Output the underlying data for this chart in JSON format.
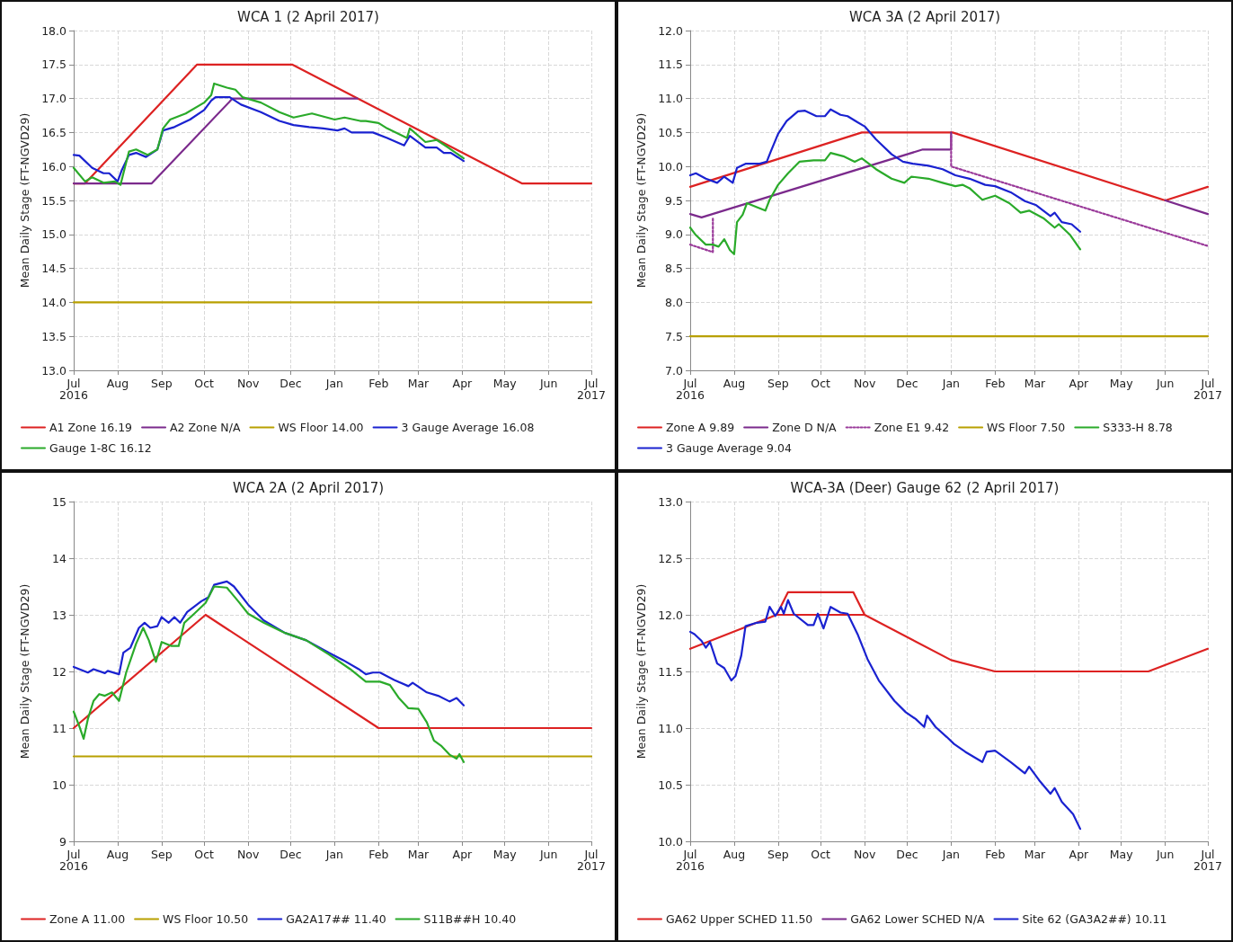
{
  "chart_data": [
    {
      "type": "line",
      "title": "WCA 1 (2 April 2017)",
      "ylabel": "Mean Daily Stage (FT-NGVD29)",
      "xlim": [
        "2016-07-01",
        "2017-07-01"
      ],
      "xticks": [
        {
          "value": "2016-07-01",
          "label": "Jul\n2016"
        },
        {
          "value": "2016-08-01",
          "label": "Aug"
        },
        {
          "value": "2016-09-01",
          "label": "Sep"
        },
        {
          "value": "2016-10-01",
          "label": "Oct"
        },
        {
          "value": "2016-11-01",
          "label": "Nov"
        },
        {
          "value": "2016-12-01",
          "label": "Dec"
        },
        {
          "value": "2017-01-01",
          "label": "Jan"
        },
        {
          "value": "2017-02-01",
          "label": "Feb"
        },
        {
          "value": "2017-03-01",
          "label": "Mar"
        },
        {
          "value": "2017-04-01",
          "label": "Apr"
        },
        {
          "value": "2017-05-01",
          "label": "May"
        },
        {
          "value": "2017-06-01",
          "label": "Jun"
        },
        {
          "value": "2017-07-01",
          "label": "Jul\n2017"
        }
      ],
      "ylim": [
        13,
        18
      ],
      "yticks": [
        {
          "value": 13,
          "label": "13.0"
        },
        13.5,
        {
          "value": 14,
          "label": "14.0"
        },
        14.5,
        {
          "value": 15,
          "label": "15.0"
        },
        15.5,
        {
          "value": 16,
          "label": "16.0"
        },
        16.5,
        {
          "value": 17,
          "label": "17.0"
        },
        17.5,
        {
          "value": 18,
          "label": "18.0"
        }
      ],
      "grid": true,
      "legend": "bottom",
      "marker": "none",
      "series": [
        {
          "name": "A1 Zone 16.19",
          "color": "#dd2222",
          "x": [
            "2016-07-01",
            "2016-07-09",
            "2016-09-26",
            "2016-12-02",
            "2017-05-13",
            "2017-07-01"
          ],
          "values": [
            15.75,
            15.75,
            17.5,
            17.5,
            15.75,
            15.75
          ]
        },
        {
          "name": "A2 Zone N/A",
          "color": "#7b2a8c",
          "x": [
            "2016-07-01",
            "2016-08-25",
            "2016-10-21",
            "2017-01-17"
          ],
          "values": [
            15.75,
            15.75,
            17.0,
            17.0
          ]
        },
        {
          "name": "WS Floor 14.00",
          "color": "#b8a000",
          "x": [
            "2016-07-01",
            "2017-07-01"
          ],
          "values": [
            14.0,
            14.0
          ]
        },
        {
          "name": "3 Gauge Average 16.08",
          "color": "#1a22d0",
          "x": [
            "2016-07-01",
            "2016-07-05",
            "2016-07-14",
            "2016-07-22",
            "2016-07-26",
            "2016-08-01",
            "2016-08-04",
            "2016-08-09",
            "2016-08-14",
            "2016-08-21",
            "2016-08-29",
            "2016-09-02",
            "2016-09-10",
            "2016-09-21",
            "2016-10-01",
            "2016-10-06",
            "2016-10-09",
            "2016-10-19",
            "2016-10-27",
            "2016-11-10",
            "2016-11-23",
            "2016-12-03",
            "2016-12-14",
            "2016-12-24",
            "2017-01-03",
            "2017-01-08",
            "2017-01-13",
            "2017-01-23",
            "2017-01-28",
            "2017-02-07",
            "2017-02-19",
            "2017-02-23",
            "2017-03-06",
            "2017-03-14",
            "2017-03-19",
            "2017-03-24",
            "2017-04-02"
          ],
          "values": [
            16.17,
            16.16,
            15.98,
            15.9,
            15.9,
            15.78,
            15.95,
            16.17,
            16.2,
            16.14,
            16.25,
            16.53,
            16.58,
            16.69,
            16.83,
            16.97,
            17.02,
            17.02,
            16.91,
            16.8,
            16.67,
            16.61,
            16.58,
            16.56,
            16.53,
            16.56,
            16.5,
            16.5,
            16.5,
            16.42,
            16.31,
            16.45,
            16.28,
            16.28,
            16.2,
            16.2,
            16.08
          ]
        },
        {
          "name": "Gauge 1-8C 16.12",
          "color": "#2aaa2a",
          "x": [
            "2016-07-01",
            "2016-07-09",
            "2016-07-14",
            "2016-07-22",
            "2016-07-30",
            "2016-08-03",
            "2016-08-07",
            "2016-08-09",
            "2016-08-14",
            "2016-08-22",
            "2016-08-29",
            "2016-09-02",
            "2016-09-07",
            "2016-09-18",
            "2016-10-01",
            "2016-10-06",
            "2016-10-08",
            "2016-10-17",
            "2016-10-23",
            "2016-10-28",
            "2016-11-10",
            "2016-11-23",
            "2016-12-03",
            "2016-12-16",
            "2017-01-01",
            "2017-01-08",
            "2017-01-19",
            "2017-01-23",
            "2017-02-01",
            "2017-02-07",
            "2017-02-21",
            "2017-02-23",
            "2017-03-06",
            "2017-03-14",
            "2017-03-22",
            "2017-04-02"
          ],
          "values": [
            15.98,
            15.78,
            15.84,
            15.76,
            15.78,
            15.73,
            16.06,
            16.22,
            16.25,
            16.17,
            16.25,
            16.56,
            16.69,
            16.78,
            16.94,
            17.05,
            17.22,
            17.16,
            17.13,
            17.02,
            16.94,
            16.8,
            16.72,
            16.78,
            16.69,
            16.72,
            16.67,
            16.67,
            16.64,
            16.56,
            16.42,
            16.56,
            16.36,
            16.39,
            16.28,
            16.12
          ]
        }
      ]
    },
    {
      "type": "line",
      "title": "WCA 3A (2 April 2017)",
      "ylabel": "Mean Daily Stage (FT-NGVD29)",
      "xlim": [
        "2016-07-01",
        "2017-07-01"
      ],
      "xticks": [
        {
          "value": "2016-07-01",
          "label": "Jul\n2016"
        },
        {
          "value": "2016-08-01",
          "label": "Aug"
        },
        {
          "value": "2016-09-01",
          "label": "Sep"
        },
        {
          "value": "2016-10-01",
          "label": "Oct"
        },
        {
          "value": "2016-11-01",
          "label": "Nov"
        },
        {
          "value": "2016-12-01",
          "label": "Dec"
        },
        {
          "value": "2017-01-01",
          "label": "Jan"
        },
        {
          "value": "2017-02-01",
          "label": "Feb"
        },
        {
          "value": "2017-03-01",
          "label": "Mar"
        },
        {
          "value": "2017-04-01",
          "label": "Apr"
        },
        {
          "value": "2017-05-01",
          "label": "May"
        },
        {
          "value": "2017-06-01",
          "label": "Jun"
        },
        {
          "value": "2017-07-01",
          "label": "Jul\n2017"
        }
      ],
      "ylim": [
        7,
        12
      ],
      "yticks": [
        {
          "value": 7,
          "label": "7.0"
        },
        7.5,
        {
          "value": 8,
          "label": "8.0"
        },
        8.5,
        {
          "value": 9,
          "label": "9.0"
        },
        9.5,
        {
          "value": 10,
          "label": "10.0"
        },
        10.5,
        {
          "value": 11,
          "label": "11.0"
        },
        11.5,
        {
          "value": 12,
          "label": "12.0"
        }
      ],
      "grid": true,
      "legend": "bottom",
      "marker": "none",
      "series": [
        {
          "name": "Zone A 9.89",
          "color": "#dd2222",
          "x": [
            "2016-07-01",
            "2016-10-30",
            "2017-01-02",
            "2017-06-01",
            "2017-07-01"
          ],
          "values": [
            9.7,
            10.5,
            10.5,
            9.5,
            9.7
          ]
        },
        {
          "name": "Zone D N/A",
          "color": "#7b2a8c",
          "x": [
            "2016-07-01",
            "2016-07-09",
            "2016-12-12",
            "2017-01-01",
            "2017-01-01",
            "2017-01-02",
            "2017-06-01",
            "2017-07-01"
          ],
          "values": [
            9.3,
            9.25,
            10.25,
            10.25,
            10.5,
            null,
            9.5,
            9.3
          ]
        },
        {
          "name": "Zone E1 9.42",
          "color": "#9a3a9a",
          "line_style": "dotted",
          "x": [
            "2016-07-01",
            "2016-07-17",
            "2016-07-17",
            "2016-07-18",
            "2017-01-01",
            "2017-01-01",
            "2017-07-01"
          ],
          "values": [
            8.85,
            8.74,
            9.25,
            null,
            10.45,
            10.0,
            8.83
          ]
        },
        {
          "name": "WS Floor 7.50",
          "color": "#b8a000",
          "x": [
            "2016-07-01",
            "2017-07-01"
          ],
          "values": [
            7.5,
            7.5
          ]
        },
        {
          "name": "S333-H 8.78",
          "color": "#2aaa2a",
          "x": [
            "2016-07-01",
            "2016-07-05",
            "2016-07-12",
            "2016-07-17",
            "2016-07-21",
            "2016-07-25",
            "2016-07-29",
            "2016-08-01",
            "2016-08-03",
            "2016-08-07",
            "2016-08-10",
            "2016-08-17",
            "2016-08-23",
            "2016-08-26",
            "2016-09-01",
            "2016-09-08",
            "2016-09-16",
            "2016-09-26",
            "2016-10-04",
            "2016-10-08",
            "2016-10-17",
            "2016-10-25",
            "2016-10-30",
            "2016-11-09",
            "2016-11-20",
            "2016-11-29",
            "2016-12-04",
            "2016-12-16",
            "2016-12-26",
            "2017-01-04",
            "2017-01-09",
            "2017-01-14",
            "2017-01-23",
            "2017-02-01",
            "2017-02-11",
            "2017-02-19",
            "2017-02-25",
            "2017-03-07",
            "2017-03-15",
            "2017-03-18",
            "2017-03-26",
            "2017-04-02"
          ],
          "values": [
            9.1,
            8.99,
            8.85,
            8.85,
            8.82,
            8.93,
            8.77,
            8.71,
            9.18,
            9.29,
            9.46,
            9.4,
            9.35,
            9.51,
            9.73,
            9.9,
            10.07,
            10.09,
            10.09,
            10.2,
            10.15,
            10.07,
            10.12,
            9.96,
            9.82,
            9.76,
            9.85,
            9.82,
            9.76,
            9.71,
            9.73,
            9.68,
            9.51,
            9.57,
            9.46,
            9.32,
            9.35,
            9.24,
            9.1,
            9.15,
            8.99,
            8.78
          ]
        },
        {
          "name": "3 Gauge Average 9.04",
          "color": "#1a22d0",
          "x": [
            "2016-07-01",
            "2016-07-05",
            "2016-07-12",
            "2016-07-20",
            "2016-07-25",
            "2016-07-31",
            "2016-08-03",
            "2016-08-09",
            "2016-08-19",
            "2016-08-24",
            "2016-08-27",
            "2016-09-01",
            "2016-09-07",
            "2016-09-15",
            "2016-09-20",
            "2016-09-28",
            "2016-10-04",
            "2016-10-08",
            "2016-10-15",
            "2016-10-20",
            "2016-10-27",
            "2016-11-01",
            "2016-11-09",
            "2016-11-20",
            "2016-11-28",
            "2016-12-05",
            "2016-12-16",
            "2016-12-26",
            "2017-01-04",
            "2017-01-14",
            "2017-01-25",
            "2017-02-01",
            "2017-02-12",
            "2017-02-22",
            "2017-03-02",
            "2017-03-12",
            "2017-03-15",
            "2017-03-20",
            "2017-03-27",
            "2017-04-02"
          ],
          "values": [
            9.87,
            9.9,
            9.82,
            9.76,
            9.85,
            9.76,
            9.98,
            10.04,
            10.04,
            10.07,
            10.23,
            10.48,
            10.67,
            10.81,
            10.82,
            10.74,
            10.74,
            10.84,
            10.76,
            10.74,
            10.65,
            10.59,
            10.4,
            10.18,
            10.07,
            10.04,
            10.01,
            9.96,
            9.87,
            9.82,
            9.73,
            9.71,
            9.62,
            9.49,
            9.43,
            9.27,
            9.32,
            9.18,
            9.15,
            9.04
          ]
        }
      ]
    },
    {
      "type": "line",
      "title": "WCA 2A (2 April 2017)",
      "ylabel": "Mean Daily Stage (FT-NGVD29)",
      "xlim": [
        "2016-07-01",
        "2017-07-01"
      ],
      "xticks": [
        {
          "value": "2016-07-01",
          "label": "Jul\n2016"
        },
        {
          "value": "2016-08-01",
          "label": "Aug"
        },
        {
          "value": "2016-09-01",
          "label": "Sep"
        },
        {
          "value": "2016-10-01",
          "label": "Oct"
        },
        {
          "value": "2016-11-01",
          "label": "Nov"
        },
        {
          "value": "2016-12-01",
          "label": "Dec"
        },
        {
          "value": "2017-01-01",
          "label": "Jan"
        },
        {
          "value": "2017-02-01",
          "label": "Feb"
        },
        {
          "value": "2017-03-01",
          "label": "Mar"
        },
        {
          "value": "2017-04-01",
          "label": "Apr"
        },
        {
          "value": "2017-05-01",
          "label": "May"
        },
        {
          "value": "2017-06-01",
          "label": "Jun"
        },
        {
          "value": "2017-07-01",
          "label": "Jul\n2017"
        }
      ],
      "ylim": [
        9,
        15
      ],
      "yticks": [
        9,
        10,
        11,
        12,
        13,
        14,
        15
      ],
      "grid": true,
      "legend": "bottom",
      "marker": "none",
      "series": [
        {
          "name": "Zone A 11.00",
          "color": "#dd2222",
          "x": [
            "2016-07-01",
            "2016-10-02",
            "2017-02-01",
            "2017-07-01"
          ],
          "values": [
            11.0,
            13.0,
            11.0,
            11.0
          ]
        },
        {
          "name": "WS Floor 10.50",
          "color": "#b8a000",
          "x": [
            "2016-07-01",
            "2017-07-01"
          ],
          "values": [
            10.5,
            10.5
          ]
        },
        {
          "name": "GA2A17## 11.40",
          "color": "#1a22d0",
          "x": [
            "2016-07-01",
            "2016-07-11",
            "2016-07-15",
            "2016-07-23",
            "2016-07-25",
            "2016-08-02",
            "2016-08-05",
            "2016-08-10",
            "2016-08-16",
            "2016-08-20",
            "2016-08-24",
            "2016-08-29",
            "2016-09-01",
            "2016-09-06",
            "2016-09-10",
            "2016-09-14",
            "2016-09-19",
            "2016-09-29",
            "2016-10-04",
            "2016-10-08",
            "2016-10-17",
            "2016-10-22",
            "2016-11-01",
            "2016-11-12",
            "2016-11-27",
            "2016-12-12",
            "2016-12-28",
            "2017-01-07",
            "2017-01-18",
            "2017-01-23",
            "2017-01-28",
            "2017-02-02",
            "2017-02-12",
            "2017-02-22",
            "2017-02-25",
            "2017-03-07",
            "2017-03-15",
            "2017-03-23",
            "2017-03-28",
            "2017-04-02"
          ],
          "values": [
            12.08,
            11.98,
            12.04,
            11.97,
            12.01,
            11.95,
            12.33,
            12.42,
            12.77,
            12.86,
            12.77,
            12.8,
            12.96,
            12.86,
            12.96,
            12.86,
            13.05,
            13.24,
            13.31,
            13.53,
            13.59,
            13.5,
            13.18,
            12.9,
            12.68,
            12.55,
            12.33,
            12.2,
            12.04,
            11.95,
            11.98,
            11.98,
            11.85,
            11.74,
            11.8,
            11.63,
            11.57,
            11.47,
            11.53,
            11.4
          ]
        },
        {
          "name": "S11B##H 10.40",
          "color": "#2aaa2a",
          "x": [
            "2016-07-01",
            "2016-07-05",
            "2016-07-08",
            "2016-07-11",
            "2016-07-15",
            "2016-07-19",
            "2016-07-23",
            "2016-07-28",
            "2016-08-02",
            "2016-08-07",
            "2016-08-14",
            "2016-08-19",
            "2016-08-23",
            "2016-08-28",
            "2016-09-01",
            "2016-09-08",
            "2016-09-13",
            "2016-09-17",
            "2016-09-24",
            "2016-10-02",
            "2016-10-08",
            "2016-10-17",
            "2016-10-25",
            "2016-11-01",
            "2016-11-12",
            "2016-11-27",
            "2016-12-12",
            "2016-12-28",
            "2017-01-12",
            "2017-01-23",
            "2017-02-02",
            "2017-02-09",
            "2017-02-15",
            "2017-02-22",
            "2017-03-01",
            "2017-03-07",
            "2017-03-12",
            "2017-03-17",
            "2017-03-23",
            "2017-03-28",
            "2017-03-30",
            "2017-04-02"
          ],
          "values": [
            11.29,
            11.03,
            10.81,
            11.16,
            11.48,
            11.6,
            11.57,
            11.63,
            11.48,
            11.98,
            12.49,
            12.77,
            12.55,
            12.17,
            12.52,
            12.45,
            12.45,
            12.86,
            13.02,
            13.21,
            13.5,
            13.48,
            13.24,
            13.02,
            12.86,
            12.68,
            12.55,
            12.3,
            12.04,
            11.82,
            11.82,
            11.76,
            11.54,
            11.35,
            11.34,
            11.1,
            10.78,
            10.69,
            10.53,
            10.46,
            10.54,
            10.4
          ]
        }
      ]
    },
    {
      "type": "line",
      "title": "WCA-3A (Deer) Gauge 62 (2 April 2017)",
      "ylabel": "Mean Daily Stage (FT-NGVD29)",
      "xlim": [
        "2016-07-01",
        "2017-07-01"
      ],
      "xticks": [
        {
          "value": "2016-07-01",
          "label": "Jul\n2016"
        },
        {
          "value": "2016-08-01",
          "label": "Aug"
        },
        {
          "value": "2016-09-01",
          "label": "Sep"
        },
        {
          "value": "2016-10-01",
          "label": "Oct"
        },
        {
          "value": "2016-11-01",
          "label": "Nov"
        },
        {
          "value": "2016-12-01",
          "label": "Dec"
        },
        {
          "value": "2017-01-01",
          "label": "Jan"
        },
        {
          "value": "2017-02-01",
          "label": "Feb"
        },
        {
          "value": "2017-03-01",
          "label": "Mar"
        },
        {
          "value": "2017-04-01",
          "label": "Apr"
        },
        {
          "value": "2017-05-01",
          "label": "May"
        },
        {
          "value": "2017-06-01",
          "label": "Jun"
        },
        {
          "value": "2017-07-01",
          "label": "Jul\n2017"
        }
      ],
      "ylim": [
        10,
        13
      ],
      "yticks": [
        {
          "value": 10,
          "label": "10.0"
        },
        10.5,
        {
          "value": 11,
          "label": "11.0"
        },
        11.5,
        {
          "value": 12,
          "label": "12.0"
        },
        12.5,
        {
          "value": 13,
          "label": "13.0"
        }
      ],
      "grid": true,
      "legend": "bottom",
      "marker": "none",
      "series": [
        {
          "name": "GA62 Upper SCHED 11.50",
          "color": "#dd2222",
          "x": [
            "2016-07-01",
            "2016-08-31",
            "2016-09-08",
            "2016-10-24",
            "2016-11-01",
            "2017-01-01",
            "2017-02-01",
            "2017-05-20",
            "2017-07-01"
          ],
          "values": [
            11.7,
            12.0,
            12.2,
            12.2,
            12.0,
            11.6,
            11.5,
            11.5,
            11.7
          ]
        },
        {
          "color": "#dd2222",
          "x": [
            "2016-08-31",
            "2016-11-01"
          ],
          "values": [
            12.0,
            12.0
          ]
        },
        {
          "name": "GA62 Lower SCHED N/A",
          "color": "#7b2a8c"
        },
        {
          "name": "Site 62 (GA3A2##) 10.11",
          "color": "#1a22d0",
          "x": [
            "2016-07-01",
            "2016-07-04",
            "2016-07-09",
            "2016-07-12",
            "2016-07-15",
            "2016-07-20",
            "2016-07-25",
            "2016-07-30",
            "2016-08-02",
            "2016-08-06",
            "2016-08-09",
            "2016-08-17",
            "2016-08-23",
            "2016-08-26",
            "2016-08-30",
            "2016-09-03",
            "2016-09-05",
            "2016-09-08",
            "2016-09-12",
            "2016-09-22",
            "2016-09-26",
            "2016-09-29",
            "2016-10-03",
            "2016-10-08",
            "2016-10-15",
            "2016-10-20",
            "2016-10-27",
            "2016-11-03",
            "2016-11-11",
            "2016-11-22",
            "2016-11-30",
            "2016-12-07",
            "2016-12-13",
            "2016-12-15",
            "2016-12-21",
            "2016-12-29",
            "2017-01-03",
            "2017-01-11",
            "2017-01-23",
            "2017-01-26",
            "2017-02-01",
            "2017-02-12",
            "2017-02-22",
            "2017-02-25",
            "2017-03-04",
            "2017-03-12",
            "2017-03-15",
            "2017-03-20",
            "2017-03-28",
            "2017-04-02"
          ],
          "values": [
            11.85,
            11.83,
            11.77,
            11.71,
            11.76,
            11.57,
            11.53,
            11.42,
            11.46,
            11.64,
            11.9,
            11.93,
            11.94,
            12.07,
            11.99,
            12.07,
            12.01,
            12.13,
            12.01,
            11.91,
            11.91,
            12.01,
            11.88,
            12.07,
            12.02,
            12.01,
            11.83,
            11.61,
            11.42,
            11.24,
            11.14,
            11.08,
            11.01,
            11.11,
            11.01,
            10.92,
            10.86,
            10.79,
            10.7,
            10.79,
            10.8,
            10.7,
            10.6,
            10.66,
            10.54,
            10.42,
            10.47,
            10.35,
            10.24,
            10.11
          ]
        }
      ]
    }
  ]
}
